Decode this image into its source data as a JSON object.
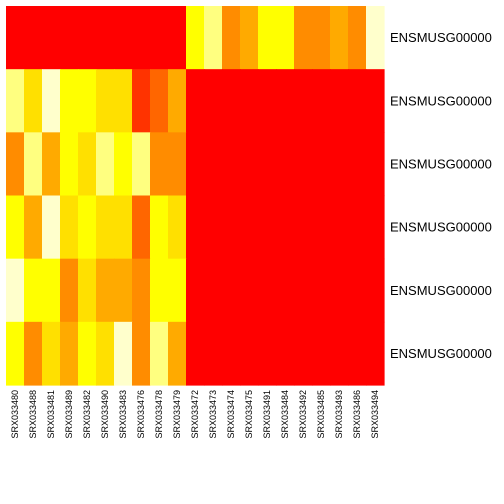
{
  "chart_data": {
    "type": "heatmap",
    "title": "",
    "xlabel": "",
    "ylabel": "",
    "columns": [
      "SRX033480",
      "SRX033488",
      "SRX033481",
      "SRX033489",
      "SRX033482",
      "SRX033490",
      "SRX033483",
      "SRX033476",
      "SRX033478",
      "SRX033479",
      "SRX033472",
      "SRX033473",
      "SRX033474",
      "SRX033475",
      "SRX033491",
      "SRX033484",
      "SRX033492",
      "SRX033485",
      "SRX033493",
      "SRX033486",
      "SRX033494"
    ],
    "rows": [
      "ENSMUSG00000",
      "ENSMUSG00000",
      "ENSMUSG00000",
      "ENSMUSG00000",
      "ENSMUSG00000",
      "ENSMUSG00000"
    ],
    "colors": [
      "#FF0000",
      "#FF3300",
      "#FF6600",
      "#FF8C00",
      "#FFAA00",
      "#FFC800",
      "#FFE000",
      "#FFFF00",
      "#FFFF80",
      "#FFFFCC"
    ],
    "values": [
      [
        0,
        0,
        0,
        0,
        0,
        0,
        0,
        0,
        0,
        0,
        7,
        8,
        3,
        4,
        7,
        7,
        3,
        3,
        4,
        3,
        9
      ],
      [
        8,
        6,
        9,
        7,
        7,
        6,
        6,
        1,
        2,
        4,
        0,
        0,
        0,
        0,
        0,
        0,
        0,
        0,
        0,
        0,
        0
      ],
      [
        3,
        8,
        4,
        7,
        6,
        8,
        7,
        8,
        3,
        3,
        0,
        0,
        0,
        0,
        0,
        0,
        0,
        0,
        0,
        0,
        0
      ],
      [
        7,
        4,
        9,
        6,
        7,
        6,
        6,
        2,
        7,
        6,
        0,
        0,
        0,
        0,
        0,
        0,
        0,
        0,
        0,
        0,
        0
      ],
      [
        9,
        7,
        7,
        3,
        6,
        4,
        4,
        3,
        7,
        7,
        0,
        0,
        0,
        0,
        0,
        0,
        0,
        0,
        0,
        0,
        0
      ],
      [
        7,
        3,
        6,
        4,
        7,
        6,
        9,
        3,
        8,
        4,
        0,
        0,
        0,
        0,
        0,
        0,
        0,
        0,
        0,
        0,
        0
      ]
    ],
    "legend": "none",
    "grid": false
  }
}
